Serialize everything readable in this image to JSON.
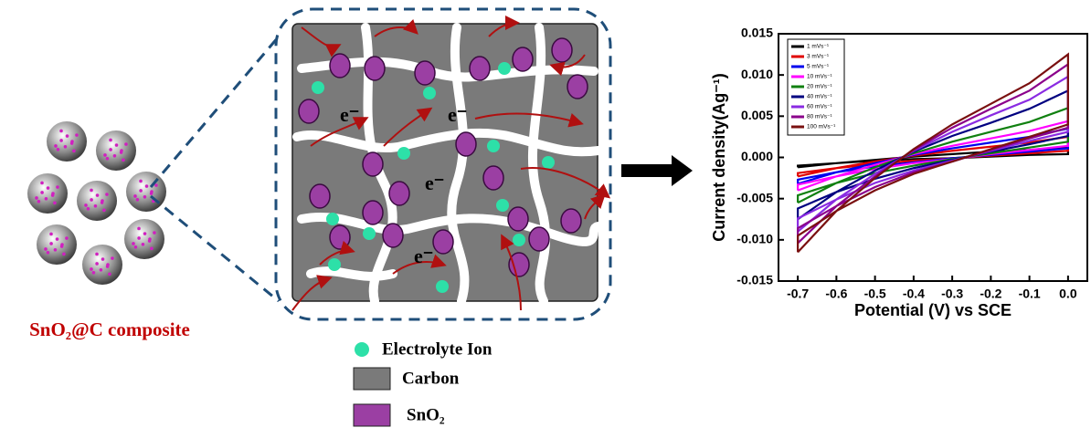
{
  "composite_label": "SnO₂@C composite",
  "electron_labels": [
    "e⁻",
    "e⁻",
    "e⁻",
    "e⁻"
  ],
  "legend": {
    "electrolyte": "Electrolyte Ion",
    "carbon": "Carbon",
    "sno2": "SnO₂"
  },
  "chart_data": {
    "type": "line",
    "x_label": "Potential (V) vs SCE",
    "y_label": "Current density(Ag⁻¹)",
    "x": [
      -0.7,
      -0.6,
      -0.5,
      -0.4,
      -0.3,
      -0.2,
      -0.1,
      0,
      0,
      -0.1,
      -0.2,
      -0.3,
      -0.4,
      -0.5,
      -0.6,
      -0.7
    ],
    "xlim": [
      -0.75,
      0.05
    ],
    "ylim": [
      -0.015,
      0.015
    ],
    "xticks": [
      -0.7,
      -0.6,
      -0.5,
      -0.4,
      -0.3,
      -0.2,
      -0.1,
      {
        "value": 0,
        "label": "0.0"
      }
    ],
    "yticks": [
      -0.015,
      {
        "value": -0.01,
        "label": "-0.010"
      },
      -0.005,
      {
        "value": 0,
        "label": "0.000"
      },
      0.005,
      {
        "value": 0.01,
        "label": "0.010"
      },
      0.015
    ],
    "legend_position": "upper left",
    "series": [
      {
        "name": "1 mVs⁻¹",
        "color": "#000000",
        "values": [
          -0.0012,
          -0.0007,
          -0.0003,
          0.0001,
          0.0004,
          0.0007,
          0.0009,
          0.0013,
          0.0004,
          0.0003,
          0.0001,
          -0.0001,
          -0.0002,
          -0.0004,
          -0.0007,
          -0.001
        ]
      },
      {
        "name": "3 mVs⁻¹",
        "color": "#e00000",
        "values": [
          -0.0023,
          -0.0013,
          -0.0005,
          0.0002,
          0.0008,
          0.0013,
          0.0018,
          0.0025,
          0.0008,
          0.0005,
          0.0002,
          -0.0001,
          -0.0004,
          -0.0008,
          -0.0013,
          -0.0019
        ]
      },
      {
        "name": "5 mVs⁻¹",
        "color": "#0000ee",
        "values": [
          -0.0032,
          -0.0018,
          -0.0007,
          0.0003,
          0.0011,
          0.0018,
          0.0025,
          0.0035,
          0.0011,
          0.0007,
          0.0003,
          -0.0001,
          -0.0006,
          -0.0011,
          -0.0018,
          -0.0027
        ]
      },
      {
        "name": "10 mVs⁻¹",
        "color": "#ff00ff",
        "values": [
          -0.004,
          -0.0023,
          -0.0009,
          0.0004,
          0.0014,
          0.0023,
          0.0032,
          0.0044,
          0.0014,
          0.0009,
          0.0004,
          -0.0002,
          -0.0007,
          -0.0014,
          -0.0023,
          -0.0033
        ]
      },
      {
        "name": "20 mVs⁻¹",
        "color": "#108010",
        "values": [
          -0.0055,
          -0.0031,
          -0.0012,
          0.0005,
          0.0019,
          0.0031,
          0.0043,
          0.006,
          0.0019,
          0.0012,
          0.0005,
          -0.0002,
          -0.001,
          -0.0019,
          -0.0031,
          -0.0046
        ]
      },
      {
        "name": "40 mVs⁻¹",
        "color": "#000080",
        "values": [
          -0.0075,
          -0.0042,
          -0.0016,
          0.0007,
          0.0026,
          0.0042,
          0.0059,
          0.0081,
          0.0026,
          0.0016,
          0.0007,
          -0.0003,
          -0.0013,
          -0.0026,
          -0.0042,
          -0.0062
        ]
      },
      {
        "name": "60 mVs⁻¹",
        "color": "#8a2be2",
        "values": [
          -0.009,
          -0.0051,
          -0.002,
          0.0008,
          0.0031,
          0.0051,
          0.007,
          0.0098,
          0.0031,
          0.002,
          0.0008,
          -0.0004,
          -0.0016,
          -0.0031,
          -0.0051,
          -0.0074
        ]
      },
      {
        "name": "80 mVs⁻¹",
        "color": "#8b008b",
        "values": [
          -0.0104,
          -0.0059,
          -0.0023,
          0.0009,
          0.0036,
          0.0059,
          0.0081,
          0.0113,
          0.0036,
          0.0023,
          0.0009,
          -0.0005,
          -0.0018,
          -0.0036,
          -0.0059,
          -0.0086
        ]
      },
      {
        "name": "100 mVs⁻¹",
        "color": "#7a1010",
        "values": [
          -0.0115,
          -0.0065,
          -0.0025,
          0.001,
          0.004,
          0.0065,
          0.009,
          0.0125,
          0.004,
          0.0025,
          0.001,
          -0.0005,
          -0.002,
          -0.004,
          -0.0065,
          -0.0095
        ]
      }
    ]
  }
}
